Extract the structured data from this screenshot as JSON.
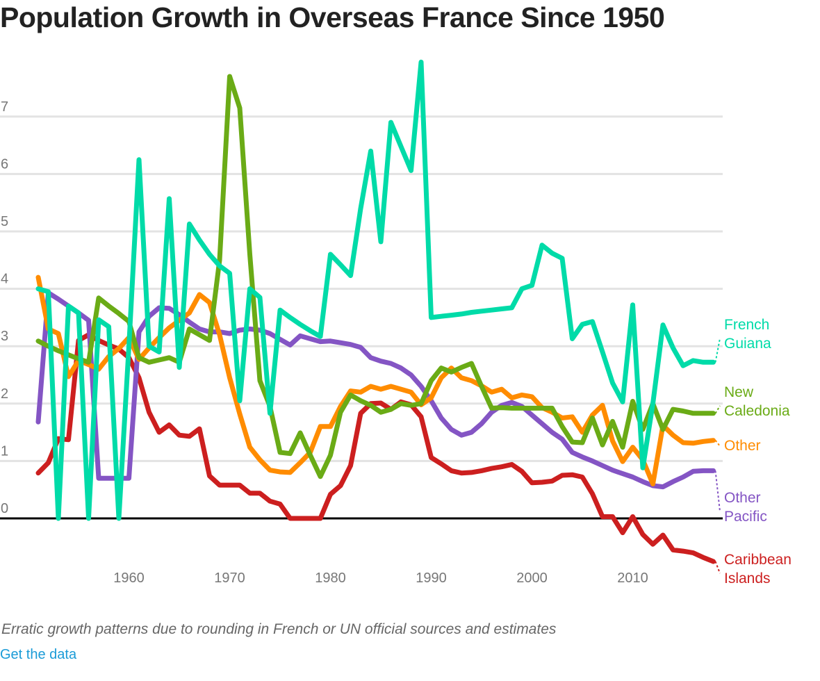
{
  "title": "Population Growth in Overseas France Since 1950",
  "caption": "Erratic growth patterns due to rounding in French or UN official sources and estimates",
  "link": "Get the data",
  "chart_data": {
    "type": "line",
    "title": "Population Growth in Overseas France Since 1950",
    "xlabel": "",
    "ylabel": "",
    "x_start": 1951,
    "x_end": 2018,
    "xlim": [
      1948.8,
      2020.6
    ],
    "ylim": [
      -1.0,
      8.2
    ],
    "xticks": [
      1960,
      1970,
      1980,
      1990,
      2000,
      2010
    ],
    "xtick_labels": [
      "1960",
      "1970",
      "1980",
      "1990",
      "2000",
      "2010"
    ],
    "yticks": [
      0,
      1,
      2,
      3,
      4,
      5,
      6,
      7
    ],
    "ytick_labels": [
      "0",
      "1",
      "2",
      "3",
      "4",
      "5",
      "6",
      "7"
    ],
    "grid": true,
    "legend": "direct labels at right end of lines",
    "series": [
      {
        "name": "French Guiana",
        "label_lines": [
          "French",
          "Guiana"
        ],
        "color": "#00dba8",
        "values": [
          4.0,
          3.95,
          0,
          3.7,
          3.58,
          0,
          3.46,
          3.34,
          0,
          3.0,
          6.25,
          3.0,
          2.9,
          5.57,
          2.63,
          5.13,
          4.85,
          4.6,
          4.4,
          4.27,
          2.05,
          4.0,
          3.85,
          1.83,
          3.63,
          3.5,
          3.38,
          3.27,
          3.17,
          4.6,
          4.42,
          4.23,
          5.4,
          6.4,
          4.82,
          6.9,
          6.48,
          6.06,
          7.95,
          3.5,
          3.52,
          3.54,
          3.56,
          3.59,
          3.61,
          3.63,
          3.65,
          3.67,
          4.0,
          4.06,
          4.76,
          4.62,
          4.53,
          3.13,
          3.38,
          3.43,
          2.9,
          2.36,
          2.03,
          3.72,
          0.88,
          2.0,
          3.37,
          2.97,
          2.66,
          2.75,
          2.72,
          2.72
        ]
      },
      {
        "name": "New Caledonia",
        "label_lines": [
          "New",
          "Caledonia"
        ],
        "color": "#6aab16",
        "values": [
          3.09,
          3.0,
          2.92,
          2.85,
          2.78,
          2.72,
          3.84,
          3.7,
          3.57,
          3.43,
          2.8,
          2.72,
          2.76,
          2.8,
          2.72,
          3.3,
          3.2,
          3.1,
          4.5,
          7.7,
          7.15,
          4.6,
          2.4,
          1.95,
          1.15,
          1.13,
          1.49,
          1.1,
          0.73,
          1.1,
          1.85,
          2.15,
          2.05,
          1.97,
          1.85,
          1.9,
          2.0,
          1.97,
          2.0,
          2.4,
          2.62,
          2.55,
          2.63,
          2.7,
          2.3,
          1.92,
          1.93,
          1.92,
          1.92,
          1.92,
          1.92,
          1.92,
          1.6,
          1.33,
          1.32,
          1.75,
          1.28,
          1.69,
          1.24,
          2.04,
          1.55,
          2.0,
          1.55,
          1.9,
          1.87,
          1.83,
          1.83,
          1.83
        ]
      },
      {
        "name": "Other",
        "label_lines": [
          "Other"
        ],
        "color": "#ff8c00",
        "values": [
          4.2,
          3.3,
          3.22,
          2.47,
          2.75,
          2.68,
          2.6,
          2.82,
          2.96,
          3.15,
          2.77,
          2.97,
          3.15,
          3.32,
          3.45,
          3.58,
          3.9,
          3.76,
          3.2,
          2.45,
          1.82,
          1.24,
          1.02,
          0.84,
          0.81,
          0.8,
          0.97,
          1.15,
          1.6,
          1.6,
          1.95,
          2.22,
          2.2,
          2.3,
          2.25,
          2.3,
          2.25,
          2.2,
          1.98,
          2.1,
          2.45,
          2.62,
          2.45,
          2.4,
          2.31,
          2.2,
          2.25,
          2.1,
          2.15,
          2.12,
          1.93,
          1.85,
          1.75,
          1.77,
          1.5,
          1.8,
          1.97,
          1.35,
          0.99,
          1.24,
          1.02,
          0.6,
          1.62,
          1.45,
          1.32,
          1.31,
          1.34,
          1.36
        ]
      },
      {
        "name": "Other Pacific",
        "label_lines": [
          "Other",
          "Pacific"
        ],
        "color": "#8455c4",
        "values": [
          1.68,
          3.93,
          3.82,
          3.7,
          3.58,
          3.45,
          0.7,
          0.7,
          0.7,
          0.7,
          3.25,
          3.52,
          3.67,
          3.66,
          3.55,
          3.42,
          3.3,
          3.25,
          3.25,
          3.22,
          3.28,
          3.3,
          3.28,
          3.22,
          3.12,
          3.02,
          3.18,
          3.13,
          3.08,
          3.09,
          3.06,
          3.03,
          2.98,
          2.8,
          2.74,
          2.7,
          2.62,
          2.5,
          2.3,
          2.05,
          1.75,
          1.55,
          1.45,
          1.5,
          1.65,
          1.85,
          1.97,
          2.02,
          1.95,
          1.8,
          1.65,
          1.5,
          1.38,
          1.15,
          1.07,
          1.0,
          0.92,
          0.84,
          0.78,
          0.72,
          0.64,
          0.57,
          0.55,
          0.64,
          0.72,
          0.82,
          0.83,
          0.83
        ]
      },
      {
        "name": "Caribbean Islands",
        "label_lines": [
          "Caribbean",
          "Islands"
        ],
        "color": "#cc1f1f",
        "values": [
          0.79,
          0.97,
          1.39,
          1.37,
          3.1,
          3.2,
          3.1,
          3.02,
          2.95,
          2.8,
          2.45,
          1.85,
          1.5,
          1.63,
          1.45,
          1.43,
          1.56,
          0.74,
          0.58,
          0.58,
          0.58,
          0.44,
          0.44,
          0.3,
          0.25,
          0,
          0,
          0,
          0,
          0.42,
          0.57,
          0.92,
          1.83,
          2.0,
          2.01,
          1.9,
          2.03,
          1.98,
          1.77,
          1.06,
          0.95,
          0.83,
          0.79,
          0.8,
          0.83,
          0.87,
          0.9,
          0.94,
          0.82,
          0.62,
          0.63,
          0.65,
          0.75,
          0.76,
          0.72,
          0.43,
          0.03,
          0.03,
          -0.25,
          0.03,
          -0.28,
          -0.45,
          -0.29,
          -0.55,
          -0.57,
          -0.6,
          -0.68,
          -0.75
        ]
      }
    ]
  }
}
